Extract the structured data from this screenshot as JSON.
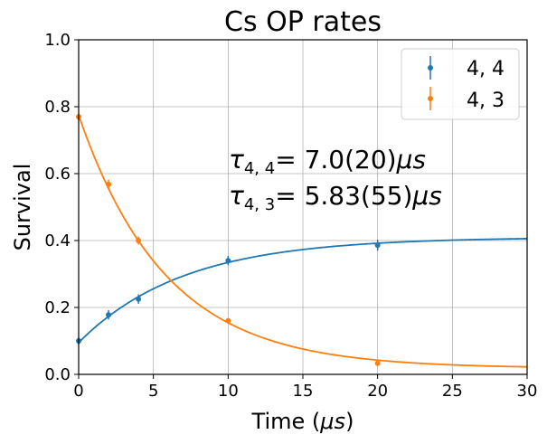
{
  "chart_data": {
    "type": "scatter",
    "title": "Cs OP rates",
    "xlabel_main": "Time (",
    "xlabel_unit": "μs",
    "xlabel_close": ")",
    "ylabel": "Survival",
    "xlim": [
      0,
      30
    ],
    "ylim": [
      0,
      1.0
    ],
    "xticks": [
      "0",
      "5",
      "10",
      "15",
      "20",
      "25",
      "30"
    ],
    "yticks": [
      "0.0",
      "0.2",
      "0.4",
      "0.6",
      "0.8",
      "1.0"
    ],
    "grid": true,
    "legend_position": "top-right",
    "series": [
      {
        "name": "4, 4",
        "color": "#1f77b4",
        "points": [
          {
            "x": 0,
            "y": 0.1,
            "err": 0.01
          },
          {
            "x": 2,
            "y": 0.178,
            "err": 0.014
          },
          {
            "x": 4,
            "y": 0.225,
            "err": 0.014
          },
          {
            "x": 10,
            "y": 0.34,
            "err": 0.014
          },
          {
            "x": 20,
            "y": 0.386,
            "err": 0.016
          }
        ],
        "fit": {
          "model": "saturating_exponential",
          "y0": 0.095,
          "yinf": 0.41,
          "tau": 7.0
        },
        "annotation": {
          "symbol": "τ",
          "subscript": "4, 4",
          "value": "= 7.0(20)",
          "unit": "μs"
        }
      },
      {
        "name": "4, 3",
        "color": "#ff7f0e",
        "points": [
          {
            "x": 0,
            "y": 0.77,
            "err": 0.01
          },
          {
            "x": 2,
            "y": 0.568,
            "err": 0.014
          },
          {
            "x": 4,
            "y": 0.4,
            "err": 0.012
          },
          {
            "x": 10,
            "y": 0.16,
            "err": 0.008
          },
          {
            "x": 20,
            "y": 0.033,
            "err": 0.006
          }
        ],
        "fit": {
          "model": "decaying_exponential",
          "y0": 0.775,
          "yinf": 0.018,
          "tau": 5.83
        },
        "annotation": {
          "symbol": "τ",
          "subscript": "4, 3",
          "value": "= 5.83(55)",
          "unit": "μs"
        }
      }
    ]
  }
}
